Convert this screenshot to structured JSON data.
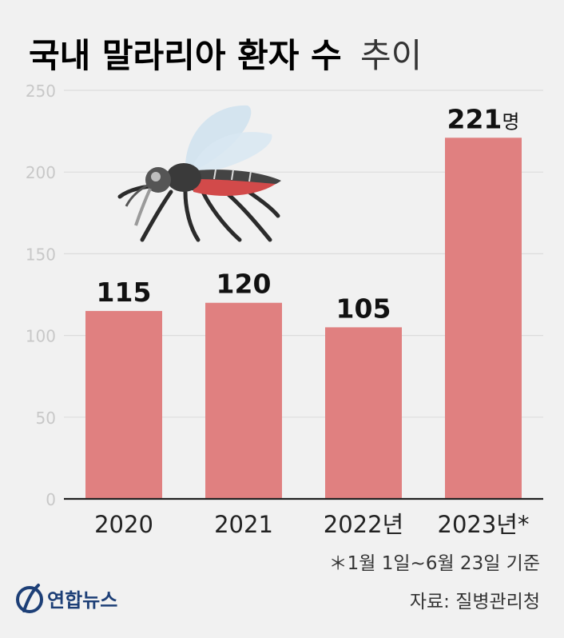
{
  "title": {
    "bold": "국내 말라리아 환자 수",
    "light": "추이"
  },
  "chart_data": {
    "type": "bar",
    "title": "국내 말라리아 환자 수 추이",
    "categories": [
      "2020",
      "2021",
      "2022년",
      "2023년*"
    ],
    "values": [
      115,
      120,
      105,
      221
    ],
    "value_labels": [
      "115",
      "120",
      "105",
      "221"
    ],
    "last_value_unit": "명",
    "ylim": [
      0,
      250
    ],
    "yticks": [
      0,
      50,
      100,
      150,
      200,
      250
    ],
    "grid": true,
    "bar_color": "#e08080"
  },
  "footnote": "＊1월 1일~6월 23일 기준",
  "source": "자료: 질병관리청",
  "logo": {
    "text": "연합뉴스",
    "color": "#1d3f77"
  },
  "illustration": {
    "icon": "mosquito-icon"
  }
}
